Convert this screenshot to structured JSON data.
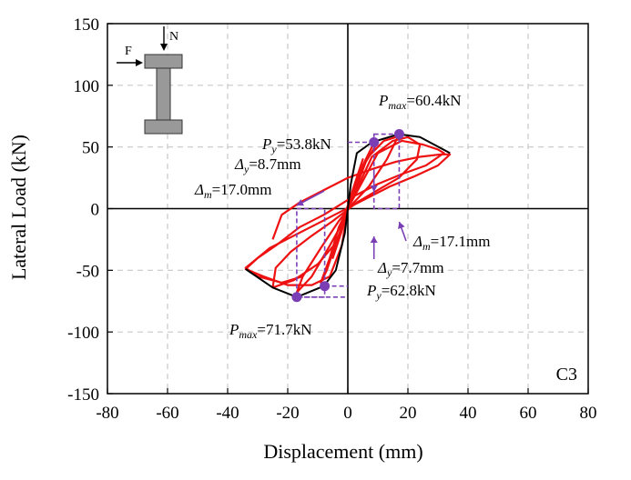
{
  "chart_data": {
    "type": "line",
    "title": "",
    "xlabel": "Displacement (mm)",
    "ylabel": "Lateral Load (kN)",
    "xlim": [
      -80,
      80
    ],
    "ylim": [
      -150,
      150
    ],
    "xticks": [
      -80,
      -60,
      -40,
      -20,
      0,
      20,
      40,
      60,
      80
    ],
    "yticks": [
      150,
      100,
      50,
      0,
      -50,
      -100,
      -150
    ],
    "grid": true,
    "specimen_label": "C3",
    "series": [
      {
        "role": "hysteresis",
        "color": "#ee1111",
        "loops": [
          {
            "x": [
              0,
              3,
              5,
              2,
              -1,
              -3,
              -5,
              -2,
              0
            ],
            "y": [
              0,
              25,
              40,
              18,
              -5,
              -25,
              -40,
              -18,
              0
            ]
          },
          {
            "x": [
              0,
              5,
              8,
              10,
              6,
              2,
              -1,
              -4,
              -7,
              -9,
              -6,
              -3,
              0
            ],
            "y": [
              0,
              35,
              50,
              54,
              38,
              12,
              -8,
              -28,
              -50,
              -60,
              -40,
              -15,
              0
            ]
          },
          {
            "x": [
              0,
              6,
              12,
              16,
              17,
              13,
              7,
              2,
              -3,
              -9,
              -15,
              -17,
              -12,
              -6,
              -1,
              0
            ],
            "y": [
              0,
              40,
              55,
              58,
              60,
              40,
              18,
              5,
              -10,
              -32,
              -55,
              -68,
              -55,
              -30,
              -8,
              0
            ]
          },
          {
            "x": [
              0,
              8,
              15,
              20,
              24,
              23,
              17,
              10,
              3,
              -5,
              -12,
              -19,
              -24,
              -25,
              -18,
              -10,
              -3,
              0
            ],
            "y": [
              0,
              42,
              55,
              58,
              52,
              40,
              25,
              15,
              5,
              -10,
              -22,
              -35,
              -48,
              -64,
              -58,
              -45,
              -25,
              0
            ]
          },
          {
            "x": [
              0,
              10,
              18,
              25,
              30,
              32,
              26,
              18,
              10,
              2,
              -8,
              -16,
              -24,
              -30,
              -34,
              -28,
              -20,
              -12,
              -6,
              -2,
              0
            ],
            "y": [
              0,
              45,
              55,
              52,
              48,
              45,
              35,
              28,
              20,
              10,
              -5,
              -15,
              -30,
              -40,
              -49,
              -55,
              -62,
              -62,
              -55,
              -30,
              0
            ]
          },
          {
            "x": [
              -25,
              -22,
              -16,
              -8,
              0,
              8,
              16,
              24,
              31,
              34,
              30,
              22,
              14,
              6,
              -2,
              -10,
              -18,
              -26,
              -31,
              -34,
              -30,
              -22,
              -15
            ],
            "y": [
              -25,
              -5,
              5,
              15,
              25,
              32,
              38,
              42,
              44,
              44,
              35,
              26,
              18,
              8,
              -2,
              -12,
              -22,
              -32,
              -42,
              -48,
              -55,
              -60,
              -55
            ]
          }
        ]
      },
      {
        "role": "envelope",
        "color": "#000000",
        "x": [
          -34,
          -25,
          -17,
          -8,
          -4,
          -1,
          0,
          1,
          3,
          8,
          17,
          24,
          34
        ],
        "y": [
          -49,
          -64,
          -71.7,
          -62.8,
          -50,
          -20,
          0,
          20,
          45,
          53.8,
          60.4,
          58,
          45
        ]
      }
    ],
    "key_points": [
      {
        "name": "Pmax positive",
        "x": 17.1,
        "y": 60.4
      },
      {
        "name": "Py positive",
        "x": 8.7,
        "y": 53.8
      },
      {
        "name": "Py negative",
        "x": -7.7,
        "y": -62.8
      },
      {
        "name": "Pmax negative",
        "x": -17.0,
        "y": -71.7
      }
    ],
    "marker_color": "#7b3fb5",
    "annotations": {
      "pmax_pos": {
        "sym": "P",
        "sub": "max",
        "val": "=60.4kN"
      },
      "py_pos": {
        "sym": "P",
        "sub": "y",
        "val": "=53.8kN"
      },
      "dy_pos": {
        "sym": "Δ",
        "sub": "y",
        "val": "=8.7mm"
      },
      "dm_neg": {
        "sym": "Δ",
        "sub": "m",
        "val": "=17.0mm"
      },
      "dm_pos": {
        "sym": "Δ",
        "sub": "m",
        "val": "=17.1mm"
      },
      "dy_neg": {
        "sym": "Δ",
        "sub": "y",
        "val": "=7.7mm"
      },
      "py_neg": {
        "sym": "P",
        "sub": "y",
        "val": "=62.8kN"
      },
      "pmax_neg": {
        "sym": "P",
        "sub": "max",
        "val": "=71.7kN"
      }
    },
    "inset": {
      "force_label": "F",
      "axial_label": "N"
    }
  }
}
